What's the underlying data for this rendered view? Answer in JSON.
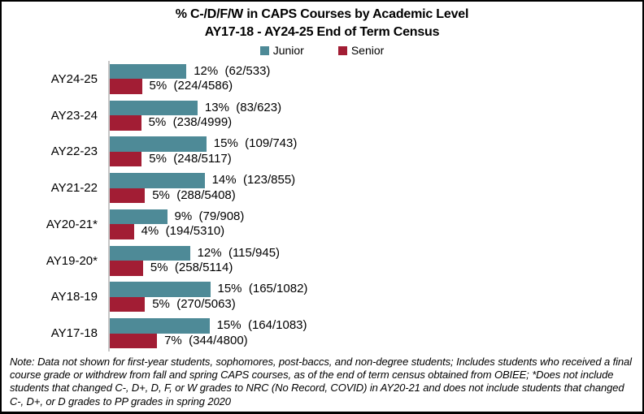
{
  "title": "% C-/D/F/W in CAPS Courses by Academic Level",
  "subtitle": "AY17-18 - AY24-25 End of Term Census",
  "legend": {
    "junior_label": "Junior",
    "senior_label": "Senior"
  },
  "colors": {
    "junior": "#4E8A97",
    "senior": "#A21D34",
    "axis_line": "#C6C6C6",
    "border": "#000000",
    "background": "#FFFFFF",
    "text": "#000000"
  },
  "chart_data": {
    "type": "bar",
    "orientation": "horizontal",
    "title": "% C-/D/F/W in CAPS Courses by Academic Level",
    "subtitle": "AY17-18 - AY24-25 End of Term Census",
    "legend_position": "top",
    "grid": false,
    "value_unit": "percent",
    "categories": [
      "AY24-25",
      "AY23-24",
      "AY22-23",
      "AY21-22",
      "AY20-21*",
      "AY19-20*",
      "AY18-19",
      "AY17-18"
    ],
    "series": [
      {
        "name": "Junior",
        "color": "#4E8A97",
        "values_pct": [
          11.63,
          13.32,
          14.67,
          14.39,
          8.7,
          12.17,
          15.25,
          15.14
        ],
        "display_pct": [
          "12%",
          "13%",
          "15%",
          "14%",
          "9%",
          "12%",
          "15%",
          "15%"
        ],
        "fractions": [
          "62/533",
          "83/623",
          "109/743",
          "123/855",
          "79/908",
          "115/945",
          "165/1082",
          "164/1083"
        ],
        "labels": [
          "12%  (62/533)",
          "13%  (83/623)",
          "15%  (109/743)",
          "14%  (123/855)",
          "9%  (79/908)",
          "12%  (115/945)",
          "15%  (165/1082)",
          "15%  (164/1083)"
        ]
      },
      {
        "name": "Senior",
        "color": "#A21D34",
        "values_pct": [
          4.88,
          4.76,
          4.85,
          5.33,
          3.65,
          5.05,
          5.33,
          7.17
        ],
        "display_pct": [
          "5%",
          "5%",
          "5%",
          "5%",
          "4%",
          "5%",
          "5%",
          "7%"
        ],
        "fractions": [
          "224/4586",
          "238/4999",
          "248/5117",
          "288/5408",
          "194/5310",
          "258/5114",
          "270/5063",
          "344/4800"
        ],
        "labels": [
          "5%  (224/4586)",
          "5%  (238/4999)",
          "5%  (248/5117)",
          "5%  (288/5408)",
          "4%  (194/5310)",
          "5%  (258/5114)",
          "5%  (270/5063)",
          "7%  (344/4800)"
        ]
      }
    ]
  },
  "note": "Note: Data not shown for first-year students, sophomores, post-baccs, and non-degree students; Includes students who received a final course grade or withdrew from fall and spring CAPS courses, as of the end of term census obtained from OBIEE; *Does not include students that changed C-, D+, D, F, or W grades to NRC (No Record, COVID) in AY20-21 and does not include students that changed C-, D+, or D grades to PP grades in spring 2020"
}
